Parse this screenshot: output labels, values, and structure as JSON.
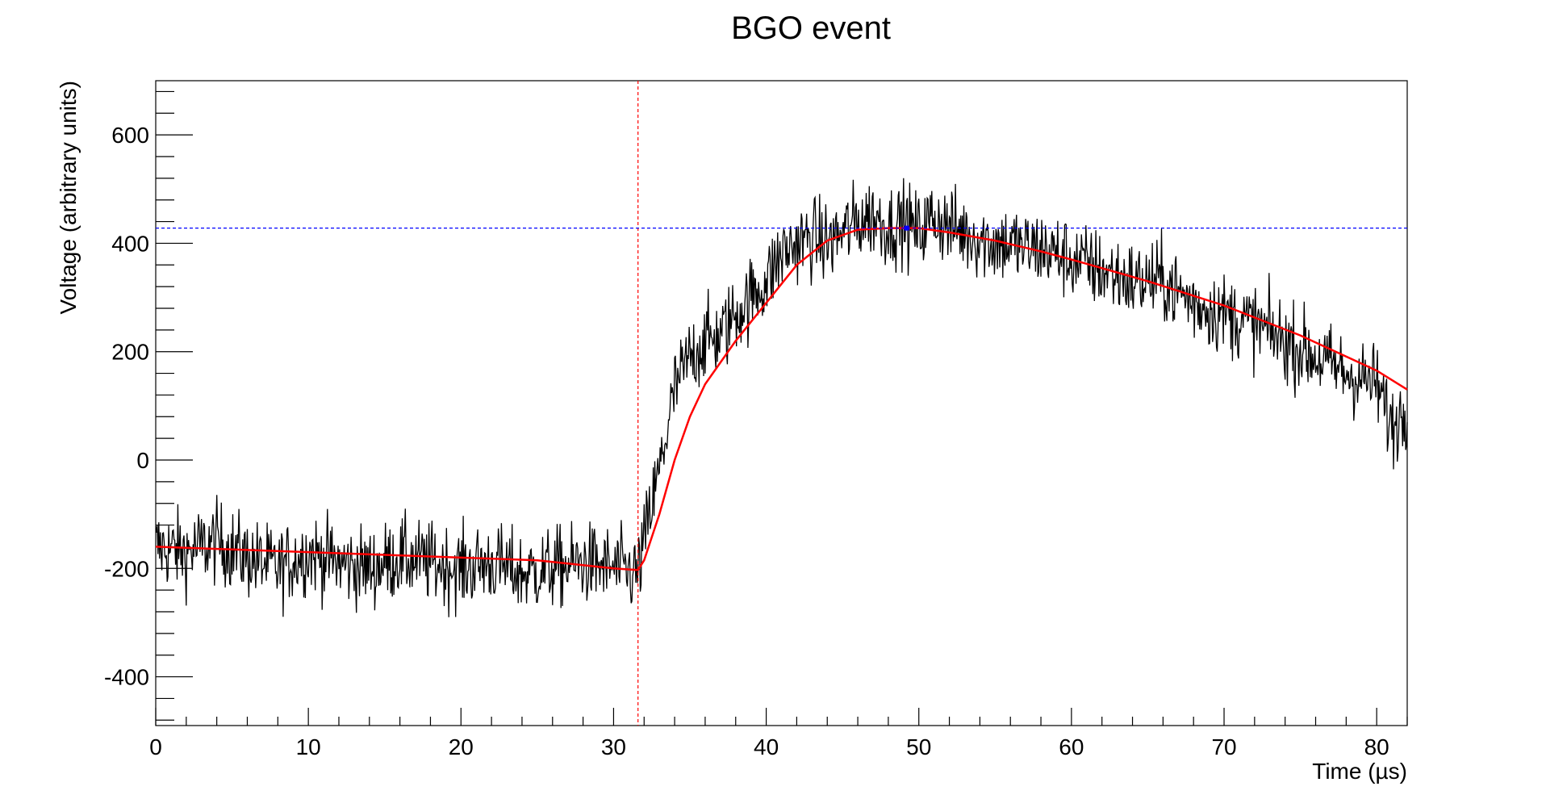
{
  "chart_data": {
    "type": "line",
    "title": "BGO event",
    "xlabel": "Time (µs)",
    "ylabel": "Voltage (arbitrary units)",
    "xlim": [
      0,
      82
    ],
    "ylim": [
      -490,
      700
    ],
    "x_ticks": [
      0,
      10,
      20,
      30,
      40,
      50,
      60,
      70,
      80
    ],
    "y_ticks": [
      -400,
      -200,
      0,
      200,
      400,
      600
    ],
    "x_tick_labels": [
      "0",
      "10",
      "20",
      "30",
      "40",
      "50",
      "60",
      "70",
      "80"
    ],
    "y_tick_labels": [
      "-400",
      "-200",
      "0",
      "200",
      "400",
      "600"
    ],
    "grid": false,
    "legend": "none",
    "series": [
      {
        "role": "waveform",
        "color": "#000000",
        "x": [
          0,
          2,
          4,
          6,
          8,
          10,
          12,
          14,
          16,
          18,
          20,
          22,
          24,
          26,
          28,
          30,
          31.6,
          32,
          33,
          34,
          35,
          36,
          37,
          38,
          39,
          40,
          41,
          42,
          43,
          44,
          45,
          46,
          47,
          48,
          49,
          50,
          51,
          52,
          53,
          54,
          55,
          56,
          57,
          58,
          59,
          60,
          62,
          64,
          66,
          68,
          70,
          72,
          74,
          76,
          78,
          80,
          81,
          82
        ],
        "y": [
          -160,
          -170,
          -150,
          -180,
          -200,
          -170,
          -190,
          -200,
          -180,
          -190,
          -200,
          -190,
          -210,
          -200,
          -190,
          -200,
          -210,
          -150,
          -20,
          130,
          190,
          220,
          230,
          270,
          300,
          330,
          380,
          400,
          410,
          400,
          420,
          440,
          450,
          430,
          440,
          420,
          450,
          430,
          420,
          410,
          400,
          400,
          390,
          390,
          380,
          370,
          350,
          330,
          330,
          290,
          270,
          250,
          220,
          190,
          160,
          140,
          60,
          100
        ]
      },
      {
        "role": "fit",
        "color": "#ff0000",
        "x": [
          0,
          5,
          10,
          15,
          20,
          25,
          30,
          31.6,
          32,
          33,
          34,
          35,
          36,
          38,
          40,
          42,
          44,
          46,
          48,
          49.2,
          50,
          52,
          55,
          58,
          60,
          65,
          70,
          75,
          80,
          82
        ],
        "y": [
          -160,
          -165,
          -170,
          -175,
          -180,
          -185,
          -200,
          -203,
          -185,
          -100,
          0,
          80,
          140,
          220,
          290,
          360,
          405,
          425,
          428,
          428,
          428,
          420,
          405,
          385,
          370,
          330,
          285,
          230,
          165,
          130
        ]
      }
    ],
    "markers": {
      "start_time": 31.6,
      "start_color": "#ff0000",
      "peak_level": 428,
      "peak_time": 49.2,
      "peak_color": "#0000ff"
    }
  }
}
